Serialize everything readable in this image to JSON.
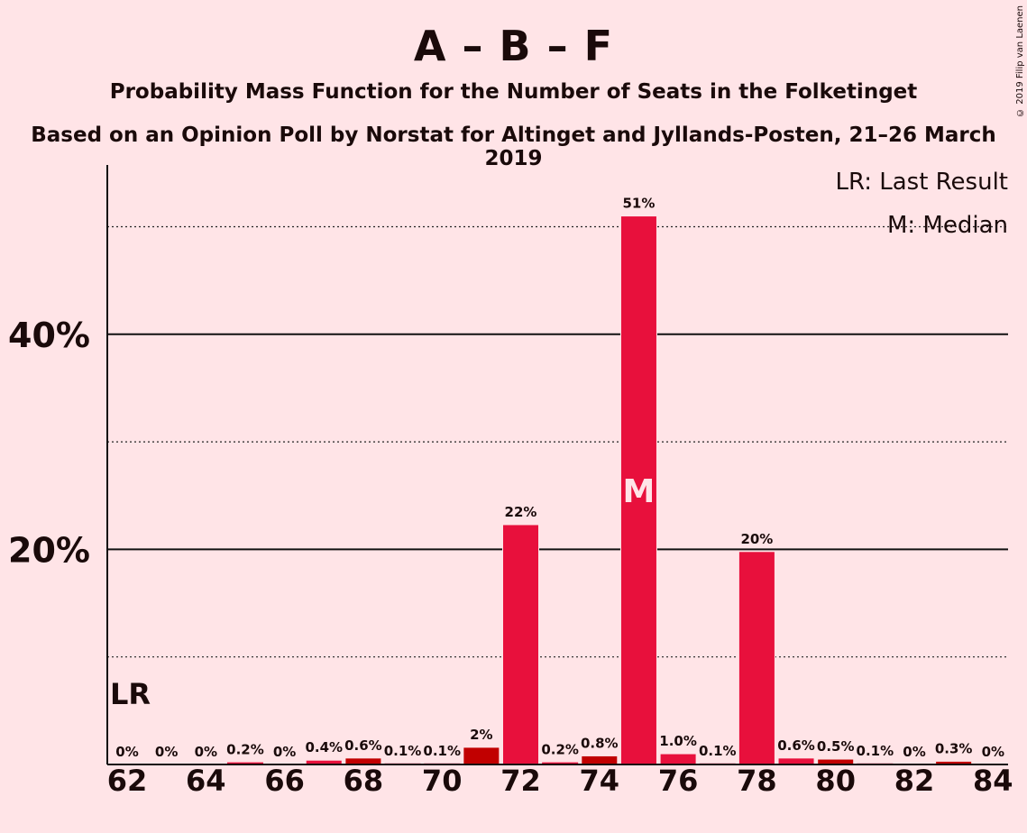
{
  "title": "A – B – F",
  "subtitle": "Probability Mass Function for the Number of Seats in the Folketinget",
  "subtitle2": "Based on an Opinion Poll by Norstat for Altinget and Jyllands-Posten, 21–26 March 2019",
  "copyright": "© 2019 Filip van Laenen",
  "chart_data": {
    "type": "bar",
    "x": [
      62,
      63,
      64,
      65,
      66,
      67,
      68,
      69,
      70,
      71,
      72,
      73,
      74,
      75,
      76,
      77,
      78,
      79,
      80,
      81,
      82,
      83,
      84
    ],
    "values": [
      0,
      0,
      0,
      0.2,
      0,
      0.4,
      0.6,
      0.1,
      0.1,
      1.6,
      22.3,
      0.2,
      0.8,
      51.0,
      1.0,
      0.1,
      19.8,
      0.6,
      0.5,
      0.1,
      0,
      0.3,
      0
    ],
    "labels": [
      "0%",
      "0%",
      "0%",
      "0.2%",
      "0%",
      "0.4%",
      "0.6%",
      "0.1%",
      "0.1%",
      "2%",
      "22%",
      "0.2%",
      "0.8%",
      "51%",
      "1.0%",
      "0.1%",
      "20%",
      "0.6%",
      "0.5%",
      "0.1%",
      "0%",
      "0.3%",
      "0%"
    ],
    "colors": [
      "#E8103C",
      "#E8103C",
      "#E8103C",
      "#E8103C",
      "#E8103C",
      "#E8103C",
      "#C10000",
      "#E8103C",
      "#E8103C",
      "#C10000",
      "#E8103C",
      "#E8103C",
      "#C10000",
      "#E8103C",
      "#E8103C",
      "#E8103C",
      "#E8103C",
      "#E8103C",
      "#C10000",
      "#E8103C",
      "#E8103C",
      "#C10000",
      "#E8103C"
    ],
    "xticks": [
      "62",
      "64",
      "66",
      "68",
      "70",
      "72",
      "74",
      "76",
      "78",
      "80",
      "82",
      "84"
    ],
    "yticks": [
      {
        "value": 20,
        "label": "20%"
      },
      {
        "value": 40,
        "label": "40%"
      }
    ],
    "minor_gridlines": [
      10,
      30,
      50
    ],
    "ylim": [
      0,
      56
    ],
    "median_seat": 75,
    "median_marker": "M",
    "last_result_seat": 62,
    "last_result_marker": "LR",
    "legend": [
      "LR: Last Result",
      "M: Median"
    ],
    "legend_position": "top-right",
    "accent": "#E8103C",
    "dark": "#C10000",
    "background": "#FFE4E7"
  }
}
